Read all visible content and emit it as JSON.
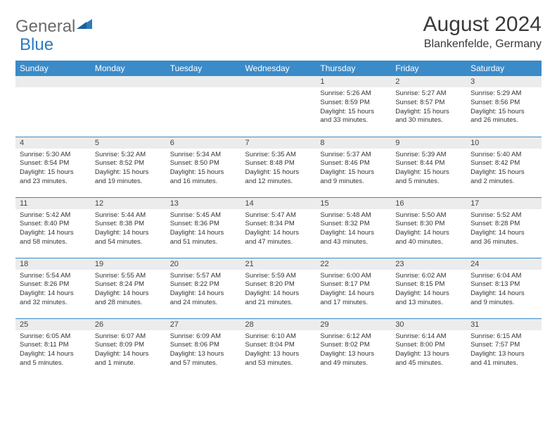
{
  "brand": {
    "part1": "General",
    "part2": "Blue"
  },
  "title": "August 2024",
  "location": "Blankenfelde, Germany",
  "colors": {
    "header_bg": "#3b8bc9",
    "header_text": "#ffffff",
    "daynum_bg": "#ececec",
    "row_divider": "#3b8bc9",
    "text": "#333333",
    "logo_gray": "#6b6b6b",
    "logo_blue": "#2b7bbf",
    "background": "#ffffff"
  },
  "typography": {
    "title_size_pt": 22,
    "location_size_pt": 12,
    "weekday_size_pt": 9,
    "daynum_size_pt": 8,
    "body_size_pt": 7
  },
  "weekdays": [
    "Sunday",
    "Monday",
    "Tuesday",
    "Wednesday",
    "Thursday",
    "Friday",
    "Saturday"
  ],
  "weeks": [
    [
      {
        "n": "",
        "sunrise": "",
        "sunset": "",
        "daylight": ""
      },
      {
        "n": "",
        "sunrise": "",
        "sunset": "",
        "daylight": ""
      },
      {
        "n": "",
        "sunrise": "",
        "sunset": "",
        "daylight": ""
      },
      {
        "n": "",
        "sunrise": "",
        "sunset": "",
        "daylight": ""
      },
      {
        "n": "1",
        "sunrise": "Sunrise: 5:26 AM",
        "sunset": "Sunset: 8:59 PM",
        "daylight": "Daylight: 15 hours and 33 minutes."
      },
      {
        "n": "2",
        "sunrise": "Sunrise: 5:27 AM",
        "sunset": "Sunset: 8:57 PM",
        "daylight": "Daylight: 15 hours and 30 minutes."
      },
      {
        "n": "3",
        "sunrise": "Sunrise: 5:29 AM",
        "sunset": "Sunset: 8:56 PM",
        "daylight": "Daylight: 15 hours and 26 minutes."
      }
    ],
    [
      {
        "n": "4",
        "sunrise": "Sunrise: 5:30 AM",
        "sunset": "Sunset: 8:54 PM",
        "daylight": "Daylight: 15 hours and 23 minutes."
      },
      {
        "n": "5",
        "sunrise": "Sunrise: 5:32 AM",
        "sunset": "Sunset: 8:52 PM",
        "daylight": "Daylight: 15 hours and 19 minutes."
      },
      {
        "n": "6",
        "sunrise": "Sunrise: 5:34 AM",
        "sunset": "Sunset: 8:50 PM",
        "daylight": "Daylight: 15 hours and 16 minutes."
      },
      {
        "n": "7",
        "sunrise": "Sunrise: 5:35 AM",
        "sunset": "Sunset: 8:48 PM",
        "daylight": "Daylight: 15 hours and 12 minutes."
      },
      {
        "n": "8",
        "sunrise": "Sunrise: 5:37 AM",
        "sunset": "Sunset: 8:46 PM",
        "daylight": "Daylight: 15 hours and 9 minutes."
      },
      {
        "n": "9",
        "sunrise": "Sunrise: 5:39 AM",
        "sunset": "Sunset: 8:44 PM",
        "daylight": "Daylight: 15 hours and 5 minutes."
      },
      {
        "n": "10",
        "sunrise": "Sunrise: 5:40 AM",
        "sunset": "Sunset: 8:42 PM",
        "daylight": "Daylight: 15 hours and 2 minutes."
      }
    ],
    [
      {
        "n": "11",
        "sunrise": "Sunrise: 5:42 AM",
        "sunset": "Sunset: 8:40 PM",
        "daylight": "Daylight: 14 hours and 58 minutes."
      },
      {
        "n": "12",
        "sunrise": "Sunrise: 5:44 AM",
        "sunset": "Sunset: 8:38 PM",
        "daylight": "Daylight: 14 hours and 54 minutes."
      },
      {
        "n": "13",
        "sunrise": "Sunrise: 5:45 AM",
        "sunset": "Sunset: 8:36 PM",
        "daylight": "Daylight: 14 hours and 51 minutes."
      },
      {
        "n": "14",
        "sunrise": "Sunrise: 5:47 AM",
        "sunset": "Sunset: 8:34 PM",
        "daylight": "Daylight: 14 hours and 47 minutes."
      },
      {
        "n": "15",
        "sunrise": "Sunrise: 5:48 AM",
        "sunset": "Sunset: 8:32 PM",
        "daylight": "Daylight: 14 hours and 43 minutes."
      },
      {
        "n": "16",
        "sunrise": "Sunrise: 5:50 AM",
        "sunset": "Sunset: 8:30 PM",
        "daylight": "Daylight: 14 hours and 40 minutes."
      },
      {
        "n": "17",
        "sunrise": "Sunrise: 5:52 AM",
        "sunset": "Sunset: 8:28 PM",
        "daylight": "Daylight: 14 hours and 36 minutes."
      }
    ],
    [
      {
        "n": "18",
        "sunrise": "Sunrise: 5:54 AM",
        "sunset": "Sunset: 8:26 PM",
        "daylight": "Daylight: 14 hours and 32 minutes."
      },
      {
        "n": "19",
        "sunrise": "Sunrise: 5:55 AM",
        "sunset": "Sunset: 8:24 PM",
        "daylight": "Daylight: 14 hours and 28 minutes."
      },
      {
        "n": "20",
        "sunrise": "Sunrise: 5:57 AM",
        "sunset": "Sunset: 8:22 PM",
        "daylight": "Daylight: 14 hours and 24 minutes."
      },
      {
        "n": "21",
        "sunrise": "Sunrise: 5:59 AM",
        "sunset": "Sunset: 8:20 PM",
        "daylight": "Daylight: 14 hours and 21 minutes."
      },
      {
        "n": "22",
        "sunrise": "Sunrise: 6:00 AM",
        "sunset": "Sunset: 8:17 PM",
        "daylight": "Daylight: 14 hours and 17 minutes."
      },
      {
        "n": "23",
        "sunrise": "Sunrise: 6:02 AM",
        "sunset": "Sunset: 8:15 PM",
        "daylight": "Daylight: 14 hours and 13 minutes."
      },
      {
        "n": "24",
        "sunrise": "Sunrise: 6:04 AM",
        "sunset": "Sunset: 8:13 PM",
        "daylight": "Daylight: 14 hours and 9 minutes."
      }
    ],
    [
      {
        "n": "25",
        "sunrise": "Sunrise: 6:05 AM",
        "sunset": "Sunset: 8:11 PM",
        "daylight": "Daylight: 14 hours and 5 minutes."
      },
      {
        "n": "26",
        "sunrise": "Sunrise: 6:07 AM",
        "sunset": "Sunset: 8:09 PM",
        "daylight": "Daylight: 14 hours and 1 minute."
      },
      {
        "n": "27",
        "sunrise": "Sunrise: 6:09 AM",
        "sunset": "Sunset: 8:06 PM",
        "daylight": "Daylight: 13 hours and 57 minutes."
      },
      {
        "n": "28",
        "sunrise": "Sunrise: 6:10 AM",
        "sunset": "Sunset: 8:04 PM",
        "daylight": "Daylight: 13 hours and 53 minutes."
      },
      {
        "n": "29",
        "sunrise": "Sunrise: 6:12 AM",
        "sunset": "Sunset: 8:02 PM",
        "daylight": "Daylight: 13 hours and 49 minutes."
      },
      {
        "n": "30",
        "sunrise": "Sunrise: 6:14 AM",
        "sunset": "Sunset: 8:00 PM",
        "daylight": "Daylight: 13 hours and 45 minutes."
      },
      {
        "n": "31",
        "sunrise": "Sunrise: 6:15 AM",
        "sunset": "Sunset: 7:57 PM",
        "daylight": "Daylight: 13 hours and 41 minutes."
      }
    ]
  ]
}
